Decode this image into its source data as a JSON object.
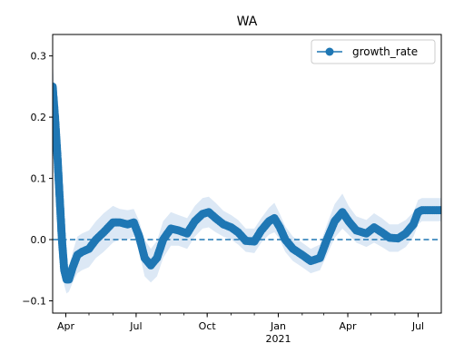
{
  "chart_data": {
    "type": "line",
    "title": "WA",
    "xlabel": "",
    "ylabel": "",
    "x_range": [
      "2020-03-15",
      "2021-07-31"
    ],
    "ylim": [
      -0.12,
      0.335
    ],
    "grid": false,
    "legend_position": "top-right",
    "x_ticks": [
      {
        "date": "2020-04-01",
        "label": "Apr"
      },
      {
        "date": "2020-07-01",
        "label": "Jul"
      },
      {
        "date": "2020-10-01",
        "label": "Oct"
      },
      {
        "date": "2021-01-01",
        "label": "Jan"
      },
      {
        "date": "2021-04-01",
        "label": "Apr"
      },
      {
        "date": "2021-07-01",
        "label": "Jul"
      }
    ],
    "x_year_label": {
      "date": "2021-01-01",
      "label": "2021"
    },
    "y_ticks": [
      -0.1,
      0.0,
      0.1,
      0.2,
      0.3
    ],
    "y_tick_labels": [
      "−0.1",
      "0.0",
      "0.1",
      "0.2",
      "0.3"
    ],
    "reference_line": {
      "y": 0.0,
      "style": "dashed",
      "color": "#1f77b4"
    },
    "series": [
      {
        "name": "growth_rate",
        "color": "#1f77b4",
        "band_color": "#dce8f5",
        "x": [
          "2020-03-15",
          "2020-03-18",
          "2020-03-21",
          "2020-03-24",
          "2020-03-27",
          "2020-03-30",
          "2020-04-02",
          "2020-04-05",
          "2020-04-10",
          "2020-04-16",
          "2020-04-22",
          "2020-05-01",
          "2020-05-10",
          "2020-05-20",
          "2020-06-01",
          "2020-06-10",
          "2020-06-20",
          "2020-06-28",
          "2020-07-05",
          "2020-07-12",
          "2020-07-20",
          "2020-07-28",
          "2020-08-05",
          "2020-08-15",
          "2020-08-25",
          "2020-09-05",
          "2020-09-15",
          "2020-09-25",
          "2020-10-03",
          "2020-10-12",
          "2020-10-22",
          "2020-11-01",
          "2020-11-10",
          "2020-11-20",
          "2020-12-01",
          "2020-12-10",
          "2020-12-20",
          "2020-12-27",
          "2021-01-03",
          "2021-01-10",
          "2021-01-20",
          "2021-02-01",
          "2021-02-12",
          "2021-02-24",
          "2021-03-05",
          "2021-03-15",
          "2021-03-25",
          "2021-04-02",
          "2021-04-12",
          "2021-04-25",
          "2021-05-05",
          "2021-05-15",
          "2021-05-25",
          "2021-06-05",
          "2021-06-15",
          "2021-06-25",
          "2021-07-01",
          "2021-07-06",
          "2021-07-15",
          "2021-07-31"
        ],
        "values": [
          0.25,
          0.2,
          0.14,
          0.07,
          0.0,
          -0.05,
          -0.065,
          -0.065,
          -0.045,
          -0.025,
          -0.02,
          -0.015,
          0.0,
          0.012,
          0.028,
          0.028,
          0.025,
          0.028,
          0.005,
          -0.03,
          -0.042,
          -0.03,
          0.0,
          0.018,
          0.015,
          0.01,
          0.03,
          0.042,
          0.045,
          0.035,
          0.025,
          0.02,
          0.012,
          -0.002,
          -0.003,
          0.015,
          0.03,
          0.035,
          0.02,
          0.0,
          -0.015,
          -0.025,
          -0.035,
          -0.03,
          0.0,
          0.03,
          0.045,
          0.03,
          0.015,
          0.01,
          0.02,
          0.012,
          0.003,
          0.002,
          0.01,
          0.025,
          0.045,
          0.048,
          0.048,
          0.048
        ],
        "lower": [
          0.22,
          0.17,
          0.11,
          0.045,
          -0.025,
          -0.075,
          -0.088,
          -0.085,
          -0.07,
          -0.055,
          -0.05,
          -0.045,
          -0.03,
          -0.02,
          -0.005,
          0.0,
          0.0,
          0.005,
          -0.02,
          -0.06,
          -0.07,
          -0.06,
          -0.03,
          -0.01,
          -0.01,
          -0.015,
          0.005,
          0.018,
          0.02,
          0.012,
          0.005,
          0.0,
          -0.008,
          -0.02,
          -0.022,
          -0.005,
          0.008,
          0.012,
          0.0,
          -0.02,
          -0.035,
          -0.045,
          -0.055,
          -0.05,
          -0.025,
          0.003,
          0.018,
          0.008,
          -0.005,
          -0.012,
          -0.005,
          -0.012,
          -0.02,
          -0.02,
          -0.012,
          0.005,
          0.025,
          0.03,
          0.03,
          0.03
        ],
        "upper": [
          0.29,
          0.235,
          0.17,
          0.1,
          0.025,
          -0.028,
          -0.045,
          -0.045,
          -0.02,
          0.005,
          0.01,
          0.015,
          0.03,
          0.043,
          0.055,
          0.05,
          0.048,
          0.05,
          0.03,
          0.0,
          -0.015,
          -0.002,
          0.03,
          0.045,
          0.04,
          0.035,
          0.055,
          0.068,
          0.07,
          0.06,
          0.047,
          0.04,
          0.032,
          0.018,
          0.018,
          0.035,
          0.052,
          0.06,
          0.042,
          0.022,
          0.005,
          -0.005,
          -0.015,
          -0.008,
          0.025,
          0.058,
          0.075,
          0.055,
          0.038,
          0.032,
          0.043,
          0.035,
          0.025,
          0.025,
          0.032,
          0.045,
          0.065,
          0.068,
          0.068,
          0.068
        ]
      }
    ]
  }
}
